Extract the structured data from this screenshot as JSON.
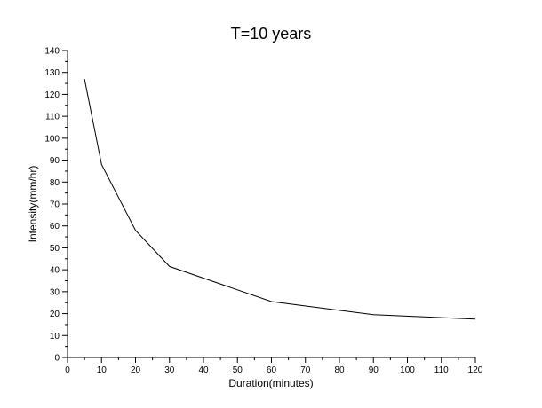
{
  "chart_data": {
    "type": "line",
    "title": "T=10 years",
    "xlabel": "Duration(minutes)",
    "ylabel": "Intensity(mm/hr)",
    "xlim": [
      0,
      120
    ],
    "ylim": [
      0,
      140
    ],
    "x_ticks": [
      0,
      10,
      20,
      30,
      40,
      50,
      60,
      70,
      80,
      90,
      100,
      110,
      120
    ],
    "y_ticks": [
      0,
      10,
      20,
      30,
      40,
      50,
      60,
      70,
      80,
      90,
      100,
      110,
      120,
      130,
      140
    ],
    "grid": false,
    "line_color": "#000000",
    "series": [
      {
        "x": [
          5,
          10,
          20,
          30,
          60,
          90,
          120
        ],
        "y": [
          127,
          88,
          58,
          41.5,
          25.5,
          19.5,
          17.5
        ]
      }
    ]
  }
}
